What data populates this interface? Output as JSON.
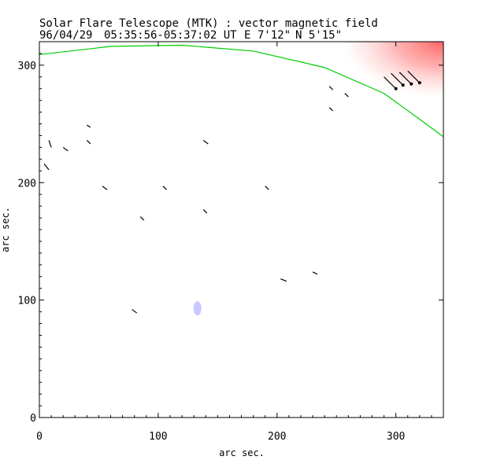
{
  "chart_data": {
    "type": "scatter",
    "title": "Solar Flare Telescope (MTK) : vector magnetic field",
    "subtitle": {
      "date": "96/04/29",
      "time_range": "05:35:56-05:37:02 UT",
      "lon": "E 7'12\"",
      "lat": "N 5'15\""
    },
    "xlabel": "arc sec.",
    "ylabel": "arc sec.",
    "xlim": [
      0,
      340
    ],
    "ylim": [
      0,
      320
    ],
    "x_ticks": [
      0,
      100,
      200,
      300
    ],
    "y_ticks": [
      0,
      100,
      200,
      300
    ],
    "limb": {
      "color": "#00cc00",
      "points": [
        [
          0,
          309
        ],
        [
          60,
          316
        ],
        [
          120,
          317
        ],
        [
          180,
          312
        ],
        [
          240,
          298
        ],
        [
          290,
          276
        ],
        [
          320,
          254
        ],
        [
          340,
          239
        ]
      ]
    },
    "red_region_color": "#ff8080",
    "blue_region": {
      "x": 133,
      "y": 93,
      "color": "#c8c8ff"
    },
    "vectors": [
      [
        8,
        236,
        2,
        -6
      ],
      [
        4,
        216,
        4,
        -5
      ],
      [
        20,
        230,
        4,
        -3
      ],
      [
        40,
        249,
        3,
        -2
      ],
      [
        40,
        236,
        3,
        -3
      ],
      [
        53,
        197,
        4,
        -3
      ],
      [
        85,
        171,
        3,
        -3
      ],
      [
        78,
        92,
        4,
        -3
      ],
      [
        104,
        197,
        3,
        -3
      ],
      [
        138,
        236,
        4,
        -3
      ],
      [
        138,
        177,
        3,
        -3
      ],
      [
        190,
        197,
        3,
        -3
      ],
      [
        203,
        118,
        5,
        -2
      ],
      [
        230,
        124,
        4,
        -2
      ],
      [
        244,
        282,
        3,
        -3
      ],
      [
        244,
        264,
        3,
        -3
      ],
      [
        257,
        276,
        3,
        -3
      ],
      [
        290,
        290,
        10,
        -10
      ],
      [
        296,
        293,
        10,
        -10
      ],
      [
        303,
        294,
        10,
        -10
      ],
      [
        310,
        295,
        10,
        -10
      ]
    ]
  }
}
